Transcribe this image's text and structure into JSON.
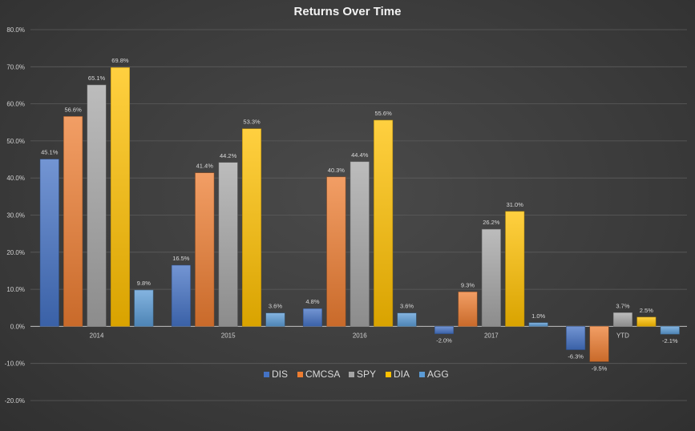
{
  "chart_data": {
    "type": "bar",
    "title": "Returns Over Time",
    "xlabel": "",
    "ylabel": "",
    "categories": [
      "2014",
      "2015",
      "2016",
      "2017",
      "YTD"
    ],
    "ylim": [
      -20,
      80
    ],
    "yticks": [
      80,
      70,
      60,
      50,
      40,
      30,
      20,
      10,
      0,
      -10,
      -20
    ],
    "ytick_labels": [
      "80.0%",
      "70.0%",
      "60.0%",
      "50.0%",
      "40.0%",
      "30.0%",
      "20.0%",
      "10.0%",
      "0.0%",
      "-10.0%",
      "-20.0%"
    ],
    "grid": true,
    "legend_position": "bottom",
    "series": [
      {
        "name": "DIS",
        "color": "#4472c4",
        "values": [
          45.1,
          16.5,
          4.8,
          -2.0,
          -6.3
        ],
        "labels": [
          "45.1%",
          "16.5%",
          "4.8%",
          "-2.0%",
          "-6.3%"
        ]
      },
      {
        "name": "CMCSA",
        "color": "#ed7d31",
        "values": [
          56.6,
          41.4,
          40.3,
          9.3,
          -9.5
        ],
        "labels": [
          "56.6%",
          "41.4%",
          "40.3%",
          "9.3%",
          "-9.5%"
        ]
      },
      {
        "name": "SPY",
        "color": "#a5a5a5",
        "values": [
          65.1,
          44.2,
          44.4,
          26.2,
          3.7
        ],
        "labels": [
          "65.1%",
          "44.2%",
          "44.4%",
          "26.2%",
          "3.7%"
        ]
      },
      {
        "name": "DIA",
        "color": "#ffc000",
        "values": [
          69.8,
          53.3,
          55.6,
          31.0,
          2.5
        ],
        "labels": [
          "69.8%",
          "53.3%",
          "55.6%",
          "31.0%",
          "2.5%"
        ]
      },
      {
        "name": "AGG",
        "color": "#5b9bd5",
        "values": [
          9.8,
          3.6,
          3.6,
          1.0,
          -2.1
        ],
        "labels": [
          "9.8%",
          "3.6%",
          "3.6%",
          "1.0%",
          "-2.1%"
        ]
      }
    ]
  }
}
